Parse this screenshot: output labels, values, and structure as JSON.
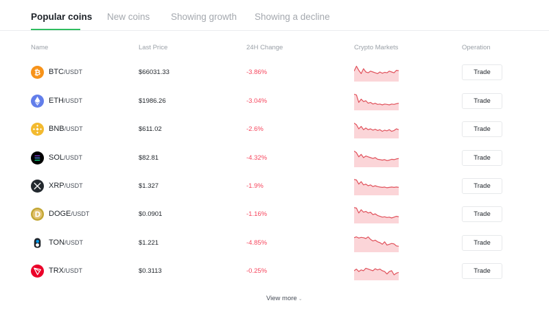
{
  "tabs": [
    {
      "label": "Popular coins",
      "active": true
    },
    {
      "label": "New coins",
      "active": false
    },
    {
      "label": "Showing growth",
      "active": false
    },
    {
      "label": "Showing a decline",
      "active": false
    }
  ],
  "columns": {
    "name": "Name",
    "last_price": "Last Price",
    "change_24h": "24H Change",
    "markets": "Crypto Markets",
    "operation": "Operation"
  },
  "colors": {
    "accent": "#2ebd5f",
    "negative": "#f6465d",
    "spark_line": "#e0505a",
    "spark_fill": "#fbd5d8"
  },
  "rows": [
    {
      "base": "BTC",
      "quote": "/USDT",
      "price": "$66031.33",
      "change": "-3.86%",
      "trade_label": "Trade",
      "icon": "bitcoin-icon",
      "icon_color": "#f7931a",
      "spark": [
        0.55,
        0.85,
        0.6,
        0.4,
        0.7,
        0.5,
        0.45,
        0.55,
        0.5,
        0.45,
        0.4,
        0.5,
        0.42,
        0.48,
        0.45,
        0.55,
        0.5,
        0.45,
        0.6,
        0.58
      ]
    },
    {
      "base": "ETH",
      "quote": "/USDT",
      "price": "$1986.26",
      "change": "-3.04%",
      "trade_label": "Trade",
      "icon": "ethereum-icon",
      "icon_color": "#627eea",
      "spark": [
        0.9,
        0.85,
        0.4,
        0.6,
        0.45,
        0.5,
        0.35,
        0.4,
        0.3,
        0.35,
        0.28,
        0.3,
        0.25,
        0.3,
        0.28,
        0.25,
        0.3,
        0.28,
        0.32,
        0.35
      ]
    },
    {
      "base": "BNB",
      "quote": "/USDT",
      "price": "$611.02",
      "change": "-2.6%",
      "trade_label": "Trade",
      "icon": "bnb-icon",
      "icon_color": "#f3ba2f",
      "spark": [
        0.85,
        0.75,
        0.5,
        0.65,
        0.45,
        0.55,
        0.45,
        0.5,
        0.42,
        0.48,
        0.4,
        0.45,
        0.35,
        0.42,
        0.38,
        0.45,
        0.35,
        0.4,
        0.5,
        0.45
      ]
    },
    {
      "base": "SOL",
      "quote": "/USDT",
      "price": "$82.81",
      "change": "-4.32%",
      "trade_label": "Trade",
      "icon": "solana-icon",
      "icon_color": "#000000",
      "spark": [
        0.9,
        0.8,
        0.55,
        0.7,
        0.5,
        0.6,
        0.55,
        0.5,
        0.45,
        0.5,
        0.4,
        0.38,
        0.35,
        0.38,
        0.32,
        0.35,
        0.4,
        0.38,
        0.42,
        0.45
      ]
    },
    {
      "base": "XRP",
      "quote": "/USDT",
      "price": "$1.327",
      "change": "-1.9%",
      "trade_label": "Trade",
      "icon": "xrp-icon",
      "icon_color": "#23292f",
      "spark": [
        0.88,
        0.85,
        0.6,
        0.75,
        0.55,
        0.6,
        0.5,
        0.55,
        0.45,
        0.5,
        0.45,
        0.42,
        0.4,
        0.42,
        0.38,
        0.4,
        0.42,
        0.4,
        0.42,
        0.4
      ]
    },
    {
      "base": "DOGE",
      "quote": "/USDT",
      "price": "$0.0901",
      "change": "-1.16%",
      "trade_label": "Trade",
      "icon": "dogecoin-icon",
      "icon_color": "#c2a633",
      "spark": [
        0.88,
        0.85,
        0.55,
        0.75,
        0.6,
        0.65,
        0.55,
        0.6,
        0.45,
        0.5,
        0.4,
        0.35,
        0.3,
        0.32,
        0.28,
        0.3,
        0.25,
        0.3,
        0.35,
        0.32
      ]
    },
    {
      "base": "TON",
      "quote": "/USDT",
      "price": "$1.221",
      "change": "-4.85%",
      "trade_label": "Trade",
      "icon": "ton-icon",
      "icon_color": "#0098ea",
      "spark": [
        0.8,
        0.85,
        0.78,
        0.82,
        0.8,
        0.75,
        0.85,
        0.7,
        0.6,
        0.65,
        0.55,
        0.5,
        0.4,
        0.55,
        0.35,
        0.4,
        0.45,
        0.42,
        0.3,
        0.28
      ]
    },
    {
      "base": "TRX",
      "quote": "/USDT",
      "price": "$0.3113",
      "change": "-0.25%",
      "trade_label": "Trade",
      "icon": "tron-icon",
      "icon_color": "#eb0029",
      "spark": [
        0.5,
        0.6,
        0.45,
        0.55,
        0.5,
        0.65,
        0.6,
        0.55,
        0.5,
        0.62,
        0.55,
        0.6,
        0.5,
        0.45,
        0.3,
        0.45,
        0.5,
        0.25,
        0.35,
        0.4
      ]
    }
  ],
  "view_more": {
    "label": "View more"
  }
}
